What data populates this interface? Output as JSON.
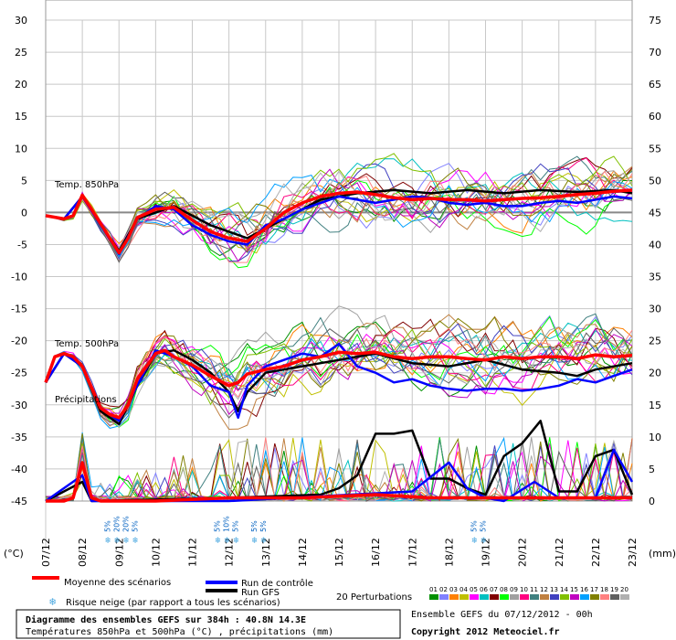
{
  "chart_data": {
    "type": "line",
    "title": "Diagramme des ensembles GEFS sur 384h : 40.8N 14.3E",
    "subtitle": "Températures 850hPa et 500hPa (°C) , précipitations (mm)",
    "x_ticks": [
      "07/12",
      "08/12",
      "09/12",
      "10/12",
      "11/12",
      "12/12",
      "13/12",
      "14/12",
      "15/12",
      "16/12",
      "17/12",
      "18/12",
      "19/12",
      "20/12",
      "21/12",
      "22/12",
      "23/12"
    ],
    "xlim": [
      0,
      384
    ],
    "y_left_label": "(°C)",
    "y_left_ticks": [
      "30",
      "25",
      "20",
      "15",
      "10",
      "5",
      "0",
      "-5",
      "-10",
      "-15",
      "-20",
      "-25",
      "-30",
      "-35",
      "-40",
      "-45"
    ],
    "y_left_range": [
      -45,
      30
    ],
    "y_right_label": "(mm)",
    "y_right_ticks": [
      "75",
      "70",
      "65",
      "60",
      "55",
      "50",
      "45",
      "40",
      "35",
      "30",
      "25",
      "20",
      "15",
      "10",
      "5",
      "0"
    ],
    "y_right_range": [
      0,
      75
    ],
    "panel_labels": {
      "t850": "Temp. 850hPa",
      "t500": "Temp. 500hPa",
      "precip": "Précipitations"
    },
    "snow_risk": [
      {
        "day": "09/12",
        "values": [
          "5%",
          "20%",
          "20%",
          "5%"
        ]
      },
      {
        "day": "12/12",
        "values": [
          "5%",
          "10%",
          "5%"
        ]
      },
      {
        "day": "13/12",
        "values": [
          "5%",
          "5%"
        ]
      },
      {
        "day": "19/12",
        "values": [
          "5%",
          "5%"
        ]
      }
    ],
    "series": [
      {
        "name": "Moyenne des scénarios",
        "color": "#ff0000",
        "t850": [
          [
            0,
            -0.5
          ],
          [
            12,
            -1
          ],
          [
            18,
            -0.5
          ],
          [
            24,
            2.7
          ],
          [
            30,
            0.5
          ],
          [
            42,
            -4
          ],
          [
            48,
            -6.3
          ],
          [
            54,
            -4
          ],
          [
            60,
            -0.8
          ],
          [
            72,
            0.5
          ],
          [
            84,
            0.8
          ],
          [
            96,
            -1.2
          ],
          [
            108,
            -3
          ],
          [
            120,
            -4
          ],
          [
            132,
            -4.5
          ],
          [
            144,
            -2.5
          ],
          [
            156,
            0
          ],
          [
            168,
            1.5
          ],
          [
            180,
            2.5
          ],
          [
            192,
            3
          ],
          [
            204,
            3.2
          ],
          [
            216,
            2.8
          ],
          [
            228,
            2.3
          ],
          [
            240,
            2
          ],
          [
            252,
            2.2
          ],
          [
            264,
            2
          ],
          [
            276,
            2
          ],
          [
            288,
            1.8
          ],
          [
            300,
            2
          ],
          [
            312,
            2.2
          ],
          [
            324,
            2.3
          ],
          [
            336,
            2.5
          ],
          [
            348,
            2.8
          ],
          [
            360,
            3
          ],
          [
            372,
            3.3
          ],
          [
            384,
            3.5
          ]
        ],
        "t500": [
          [
            0,
            -26.5
          ],
          [
            6,
            -22.5
          ],
          [
            12,
            -22
          ],
          [
            18,
            -22.5
          ],
          [
            24,
            -24
          ],
          [
            36,
            -30.5
          ],
          [
            42,
            -31.5
          ],
          [
            48,
            -32
          ],
          [
            54,
            -30
          ],
          [
            60,
            -26
          ],
          [
            72,
            -22
          ],
          [
            78,
            -21.5
          ],
          [
            84,
            -22.5
          ],
          [
            96,
            -23.8
          ],
          [
            108,
            -25.5
          ],
          [
            120,
            -27
          ],
          [
            126,
            -26.5
          ],
          [
            132,
            -25.2
          ],
          [
            144,
            -24.5
          ],
          [
            156,
            -24
          ],
          [
            168,
            -23
          ],
          [
            180,
            -22.5
          ],
          [
            192,
            -21.8
          ],
          [
            204,
            -22
          ],
          [
            216,
            -21.8
          ],
          [
            228,
            -22.5
          ],
          [
            240,
            -22.8
          ],
          [
            252,
            -22.5
          ],
          [
            264,
            -22.5
          ],
          [
            276,
            -22.8
          ],
          [
            288,
            -23
          ],
          [
            300,
            -22.5
          ],
          [
            312,
            -22.8
          ],
          [
            324,
            -22.5
          ],
          [
            336,
            -22.5
          ],
          [
            348,
            -22.8
          ],
          [
            360,
            -22.2
          ],
          [
            372,
            -22.5
          ],
          [
            384,
            -22.3
          ]
        ],
        "precip": [
          [
            0,
            0
          ],
          [
            12,
            0
          ],
          [
            18,
            0.5
          ],
          [
            24,
            6
          ],
          [
            30,
            0.5
          ],
          [
            36,
            0
          ],
          [
            60,
            0
          ],
          [
            72,
            0
          ],
          [
            120,
            0.5
          ],
          [
            168,
            0.5
          ],
          [
            216,
            1
          ],
          [
            252,
            0.5
          ],
          [
            300,
            0.5
          ],
          [
            360,
            0.5
          ],
          [
            384,
            0.5
          ]
        ]
      },
      {
        "name": "Run de contrôle",
        "color": "#0000ff",
        "t850": [
          [
            0,
            -0.5
          ],
          [
            12,
            -1
          ],
          [
            24,
            2.5
          ],
          [
            36,
            -2
          ],
          [
            48,
            -6.5
          ],
          [
            60,
            -1
          ],
          [
            72,
            1
          ],
          [
            84,
            0.5
          ],
          [
            96,
            -2
          ],
          [
            108,
            -3.5
          ],
          [
            120,
            -4.5
          ],
          [
            132,
            -5
          ],
          [
            144,
            -2
          ],
          [
            156,
            -1
          ],
          [
            168,
            0.5
          ],
          [
            180,
            1.5
          ],
          [
            192,
            2.5
          ],
          [
            204,
            2
          ],
          [
            216,
            1.5
          ],
          [
            228,
            2
          ],
          [
            240,
            2.5
          ],
          [
            252,
            2.3
          ],
          [
            264,
            1.5
          ],
          [
            276,
            1.2
          ],
          [
            288,
            1.5
          ],
          [
            300,
            1
          ],
          [
            312,
            1
          ],
          [
            324,
            1.5
          ],
          [
            336,
            1.8
          ],
          [
            348,
            1.5
          ],
          [
            360,
            2
          ],
          [
            372,
            2.5
          ],
          [
            384,
            2.2
          ]
        ],
        "t500": [
          [
            0,
            -26.5
          ],
          [
            12,
            -22
          ],
          [
            24,
            -24
          ],
          [
            36,
            -30.5
          ],
          [
            48,
            -32.5
          ],
          [
            60,
            -27
          ],
          [
            72,
            -21.5
          ],
          [
            84,
            -22.5
          ],
          [
            96,
            -24
          ],
          [
            108,
            -27
          ],
          [
            120,
            -28
          ],
          [
            126,
            -32
          ],
          [
            132,
            -27
          ],
          [
            144,
            -24
          ],
          [
            156,
            -23
          ],
          [
            168,
            -22
          ],
          [
            180,
            -22.5
          ],
          [
            192,
            -20.5
          ],
          [
            204,
            -24
          ],
          [
            216,
            -25
          ],
          [
            228,
            -26.5
          ],
          [
            240,
            -26
          ],
          [
            252,
            -27
          ],
          [
            264,
            -27.5
          ],
          [
            276,
            -27.8
          ],
          [
            288,
            -27.5
          ],
          [
            300,
            -27.5
          ],
          [
            312,
            -27.8
          ],
          [
            324,
            -27.5
          ],
          [
            336,
            -27
          ],
          [
            348,
            -26
          ],
          [
            360,
            -26.5
          ],
          [
            372,
            -25.5
          ],
          [
            384,
            -24.5
          ]
        ],
        "precip": [
          [
            0,
            0
          ],
          [
            24,
            4
          ],
          [
            30,
            0
          ],
          [
            60,
            0
          ],
          [
            120,
            0
          ],
          [
            200,
            1
          ],
          [
            240,
            1.5
          ],
          [
            264,
            6
          ],
          [
            276,
            2
          ],
          [
            288,
            0.5
          ],
          [
            300,
            0
          ],
          [
            320,
            3
          ],
          [
            336,
            0.5
          ],
          [
            360,
            0.5
          ],
          [
            372,
            8
          ],
          [
            384,
            3
          ]
        ]
      },
      {
        "name": "Run GFS",
        "color": "#000000",
        "t850": [
          [
            0,
            -0.5
          ],
          [
            12,
            -1
          ],
          [
            24,
            2.5
          ],
          [
            48,
            -6
          ],
          [
            60,
            -1
          ],
          [
            84,
            1
          ],
          [
            108,
            -2
          ],
          [
            132,
            -4
          ],
          [
            156,
            -1
          ],
          [
            180,
            2
          ],
          [
            204,
            3
          ],
          [
            228,
            3.5
          ],
          [
            252,
            3
          ],
          [
            276,
            3.5
          ],
          [
            300,
            3
          ],
          [
            324,
            3.5
          ],
          [
            348,
            3.2
          ],
          [
            372,
            3.5
          ],
          [
            384,
            3
          ]
        ],
        "t500": [
          [
            0,
            -26.5
          ],
          [
            12,
            -22
          ],
          [
            24,
            -24
          ],
          [
            36,
            -31
          ],
          [
            48,
            -33
          ],
          [
            60,
            -27
          ],
          [
            72,
            -22
          ],
          [
            84,
            -21.5
          ],
          [
            96,
            -23
          ],
          [
            108,
            -25
          ],
          [
            120,
            -28
          ],
          [
            126,
            -31
          ],
          [
            132,
            -28
          ],
          [
            144,
            -25
          ],
          [
            168,
            -24
          ],
          [
            192,
            -23
          ],
          [
            216,
            -22
          ],
          [
            240,
            -23.5
          ],
          [
            264,
            -24
          ],
          [
            288,
            -23
          ],
          [
            312,
            -24.5
          ],
          [
            336,
            -25
          ],
          [
            348,
            -25.5
          ],
          [
            360,
            -24.5
          ],
          [
            372,
            -24
          ],
          [
            384,
            -23.5
          ]
        ],
        "precip": [
          [
            0,
            0
          ],
          [
            24,
            3
          ],
          [
            30,
            0
          ],
          [
            120,
            0.5
          ],
          [
            180,
            1
          ],
          [
            192,
            2
          ],
          [
            204,
            4
          ],
          [
            216,
            10.5
          ],
          [
            228,
            10.5
          ],
          [
            240,
            11
          ],
          [
            252,
            3.5
          ],
          [
            264,
            3.5
          ],
          [
            276,
            2
          ],
          [
            288,
            1
          ],
          [
            300,
            7
          ],
          [
            312,
            9
          ],
          [
            324,
            12.5
          ],
          [
            336,
            1.5
          ],
          [
            348,
            1.5
          ],
          [
            360,
            7
          ],
          [
            372,
            8
          ],
          [
            384,
            1
          ]
        ]
      }
    ],
    "legend": {
      "mean": "Moyenne des scénarios",
      "control": "Run de contrôle",
      "gfs": "Run GFS",
      "snow": "Risque neige (par rapport a tous les scénarios)",
      "perturbations_label": "20 Perturbations",
      "perturbation_ids": [
        "01",
        "02",
        "03",
        "04",
        "05",
        "06",
        "07",
        "08",
        "09",
        "10",
        "11",
        "12",
        "13",
        "14",
        "15",
        "16",
        "17",
        "18",
        "19",
        "20"
      ],
      "perturbation_colors": [
        "#009000",
        "#8080ff",
        "#ff8000",
        "#c0c000",
        "#ff00ff",
        "#00c0c0",
        "#800000",
        "#00ff00",
        "#a0a0a0",
        "#ff0080",
        "#408080",
        "#c08040",
        "#4040c0",
        "#80c000",
        "#c000c0",
        "#00a0ff",
        "#808000",
        "#ff8080",
        "#606060",
        "#b0b0b0"
      ]
    },
    "footer": {
      "title": "Diagramme des ensembles GEFS sur 384h : 40.8N 14.3E",
      "subtitle": "Températures 850hPa et 500hPa (°C) , précipitations (mm)",
      "run": "Ensemble GEFS du 07/12/2012 - 00h",
      "copyright": "Copyright 2012 Meteociel.fr"
    }
  }
}
